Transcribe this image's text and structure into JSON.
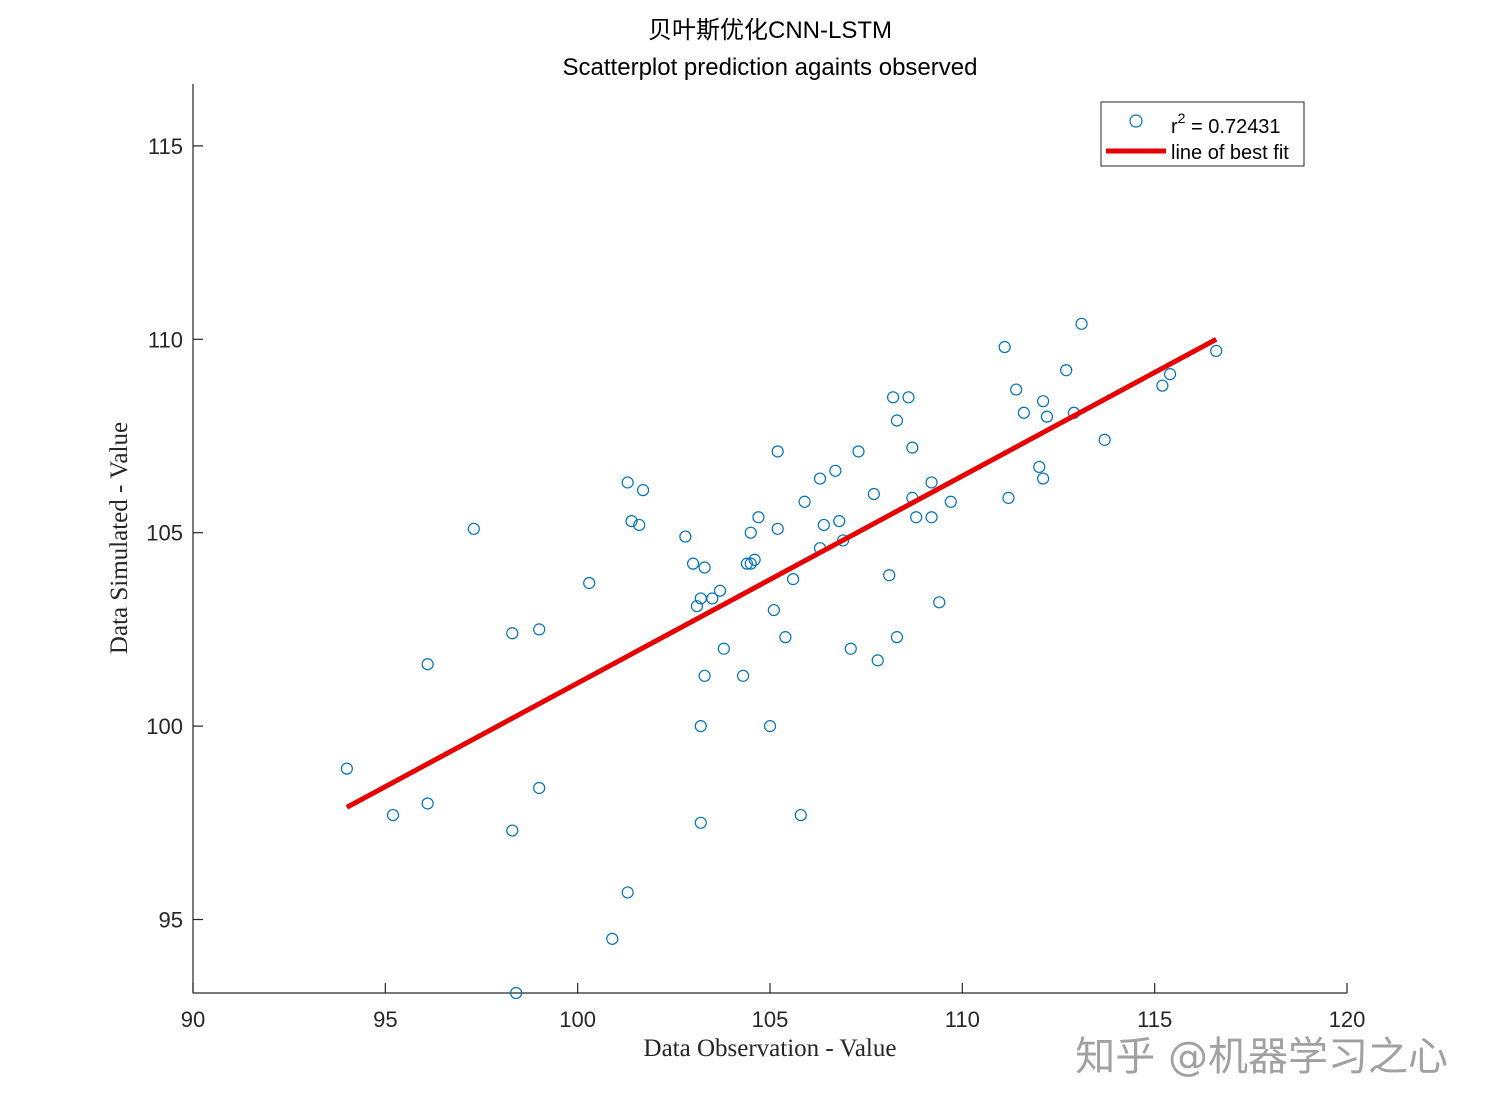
{
  "chart_data": {
    "type": "scatter",
    "title": "贝叶斯优化CNN-LSTM",
    "subtitle": "Scatterplot prediction againts observed",
    "xlabel": "Data Observation - Value",
    "ylabel": "Data Simulated - Value",
    "xlim": [
      90,
      120
    ],
    "ylim": [
      93.1,
      116.6
    ],
    "xticks": [
      "90",
      "95",
      "100",
      "105",
      "110",
      "115",
      "120"
    ],
    "yticks": [
      "95",
      "100",
      "105",
      "110",
      "115"
    ],
    "grid": false,
    "legend_position": "top-right",
    "legend": {
      "r2_prefix": "r",
      "r2_sup": "2",
      "r2_value": " = 0.72431",
      "fit_label": "line of best fit"
    },
    "series": [
      {
        "type": "scatter",
        "color": "#0072BD",
        "points": [
          [
            94.0,
            98.9
          ],
          [
            95.2,
            97.7
          ],
          [
            96.1,
            101.6
          ],
          [
            96.1,
            98.0
          ],
          [
            97.3,
            105.1
          ],
          [
            98.3,
            102.4
          ],
          [
            98.3,
            97.3
          ],
          [
            98.4,
            93.1
          ],
          [
            99.0,
            102.5
          ],
          [
            99.0,
            98.4
          ],
          [
            100.3,
            103.7
          ],
          [
            100.9,
            94.5
          ],
          [
            101.3,
            106.3
          ],
          [
            101.3,
            95.7
          ],
          [
            101.4,
            105.3
          ],
          [
            101.6,
            105.2
          ],
          [
            101.7,
            106.1
          ],
          [
            102.8,
            104.9
          ],
          [
            103.0,
            104.2
          ],
          [
            103.1,
            103.1
          ],
          [
            103.2,
            103.3
          ],
          [
            103.2,
            100.0
          ],
          [
            103.2,
            97.5
          ],
          [
            103.3,
            104.1
          ],
          [
            103.3,
            101.3
          ],
          [
            103.5,
            103.3
          ],
          [
            103.7,
            103.5
          ],
          [
            103.8,
            102.0
          ],
          [
            104.3,
            101.3
          ],
          [
            104.4,
            104.2
          ],
          [
            104.5,
            104.2
          ],
          [
            104.5,
            105.0
          ],
          [
            104.6,
            104.3
          ],
          [
            104.7,
            105.4
          ],
          [
            105.0,
            100.0
          ],
          [
            105.1,
            103.0
          ],
          [
            105.2,
            107.1
          ],
          [
            105.2,
            105.1
          ],
          [
            105.4,
            102.3
          ],
          [
            105.6,
            103.8
          ],
          [
            105.8,
            97.7
          ],
          [
            105.9,
            105.8
          ],
          [
            106.3,
            104.6
          ],
          [
            106.3,
            106.4
          ],
          [
            106.4,
            105.2
          ],
          [
            106.7,
            106.6
          ],
          [
            106.8,
            105.3
          ],
          [
            106.9,
            104.8
          ],
          [
            107.1,
            102.0
          ],
          [
            107.3,
            107.1
          ],
          [
            107.7,
            106.0
          ],
          [
            107.8,
            101.7
          ],
          [
            108.1,
            103.9
          ],
          [
            108.2,
            108.5
          ],
          [
            108.3,
            107.9
          ],
          [
            108.3,
            102.3
          ],
          [
            108.6,
            108.5
          ],
          [
            108.7,
            107.2
          ],
          [
            108.7,
            105.9
          ],
          [
            108.8,
            105.4
          ],
          [
            109.2,
            106.3
          ],
          [
            109.2,
            105.4
          ],
          [
            109.4,
            103.2
          ],
          [
            109.7,
            105.8
          ],
          [
            111.1,
            109.8
          ],
          [
            111.2,
            105.9
          ],
          [
            111.4,
            108.7
          ],
          [
            111.6,
            108.1
          ],
          [
            112.0,
            106.7
          ],
          [
            112.1,
            108.4
          ],
          [
            112.1,
            106.4
          ],
          [
            112.2,
            108.0
          ],
          [
            112.7,
            109.2
          ],
          [
            112.9,
            108.1
          ],
          [
            113.1,
            110.4
          ],
          [
            113.7,
            107.4
          ],
          [
            115.2,
            108.8
          ],
          [
            115.4,
            109.1
          ],
          [
            116.6,
            109.7
          ]
        ]
      },
      {
        "type": "line",
        "color": "#E60000",
        "points": [
          [
            94.0,
            97.9
          ],
          [
            116.6,
            110.0
          ]
        ]
      }
    ]
  },
  "watermark": "知乎 @机器学习之心"
}
